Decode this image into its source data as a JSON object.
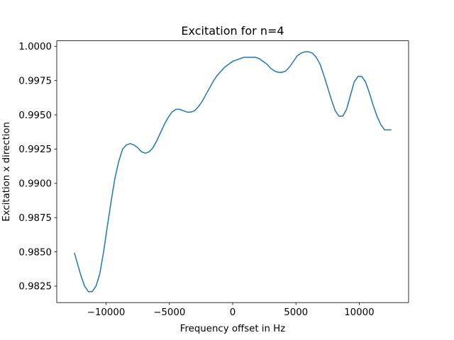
{
  "chart_data": {
    "type": "line",
    "title": "Excitation for n=4",
    "xlabel": "Frequency offset in Hz",
    "ylabel": "Excitation x direction",
    "xlim": [
      -13900,
      13900
    ],
    "ylim": [
      0.9813,
      1.0004
    ],
    "xticks": [
      {
        "value": -10000,
        "label": "−10000"
      },
      {
        "value": -5000,
        "label": "−5000"
      },
      {
        "value": 0,
        "label": "0"
      },
      {
        "value": 5000,
        "label": "5000"
      },
      {
        "value": 10000,
        "label": "10000"
      }
    ],
    "yticks": [
      {
        "value": 0.9825,
        "label": "0.9825"
      },
      {
        "value": 0.985,
        "label": "0.9850"
      },
      {
        "value": 0.9875,
        "label": "0.9875"
      },
      {
        "value": 0.99,
        "label": "0.9900"
      },
      {
        "value": 0.9925,
        "label": "0.9925"
      },
      {
        "value": 0.995,
        "label": "0.9950"
      },
      {
        "value": 0.9975,
        "label": "0.9975"
      },
      {
        "value": 1.0,
        "label": "1.0000"
      }
    ],
    "grid": false,
    "series": [
      {
        "color": "#1f77b4",
        "x": [
          -12500,
          -12000,
          -11700,
          -11400,
          -11100,
          -10800,
          -10500,
          -10200,
          -9900,
          -9600,
          -9300,
          -9000,
          -8700,
          -8400,
          -8100,
          -7800,
          -7500,
          -7200,
          -6900,
          -6600,
          -6300,
          -6000,
          -5700,
          -5400,
          -5100,
          -4800,
          -4500,
          -4200,
          -3900,
          -3600,
          -3300,
          -3000,
          -2700,
          -2400,
          -2100,
          -1800,
          -1500,
          -1200,
          -900,
          -600,
          -300,
          0,
          300,
          600,
          900,
          1200,
          1500,
          1800,
          2100,
          2400,
          2700,
          3000,
          3300,
          3600,
          3900,
          4200,
          4500,
          4800,
          5100,
          5400,
          5700,
          6000,
          6300,
          6600,
          6900,
          7200,
          7500,
          7800,
          8100,
          8400,
          8700,
          9000,
          9300,
          9600,
          9900,
          10200,
          10500,
          10800,
          11100,
          11400,
          11700,
          12000,
          12300,
          12500
        ],
        "y": [
          0.9849,
          0.9833,
          0.9825,
          0.9821,
          0.9821,
          0.9825,
          0.9834,
          0.985,
          0.9869,
          0.9887,
          0.9904,
          0.9916,
          0.9925,
          0.9928,
          0.9929,
          0.9928,
          0.9926,
          0.9923,
          0.9922,
          0.9923,
          0.9926,
          0.9931,
          0.9937,
          0.9943,
          0.9948,
          0.9952,
          0.9954,
          0.9954,
          0.9953,
          0.9952,
          0.9952,
          0.9953,
          0.9956,
          0.996,
          0.9965,
          0.997,
          0.9975,
          0.9979,
          0.9982,
          0.9985,
          0.9987,
          0.9989,
          0.999,
          0.9991,
          0.9992,
          0.9992,
          0.9992,
          0.9992,
          0.9991,
          0.9989,
          0.9987,
          0.9984,
          0.9982,
          0.9981,
          0.9981,
          0.9982,
          0.9985,
          0.9989,
          0.9993,
          0.9995,
          0.9996,
          0.9996,
          0.9995,
          0.9992,
          0.9987,
          0.9979,
          0.997,
          0.9961,
          0.9953,
          0.9949,
          0.9949,
          0.9954,
          0.9964,
          0.9974,
          0.9978,
          0.9978,
          0.9974,
          0.9966,
          0.9957,
          0.9949,
          0.9943,
          0.9939,
          0.9939,
          0.9939
        ]
      }
    ]
  }
}
